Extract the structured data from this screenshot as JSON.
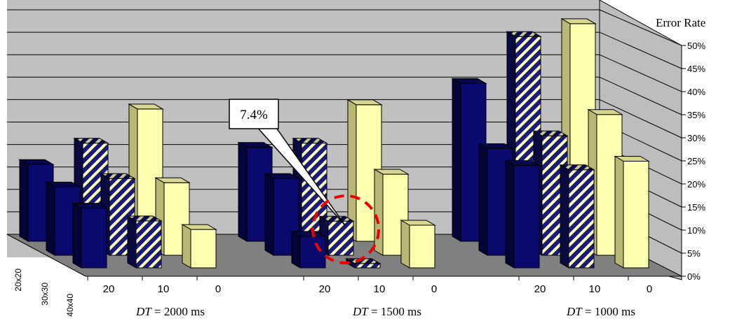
{
  "chart_data": {
    "type": "bar",
    "axis_title": "Error Rate",
    "y_ticks": [
      "0%",
      "5%",
      "10%",
      "15%",
      "20%",
      "25%",
      "30%",
      "35%",
      "40%",
      "45%",
      "50%"
    ],
    "ylim": [
      0,
      50
    ],
    "grid": true,
    "groups": [
      {
        "label_var": "DT",
        "label_rest": " = 2000 ms"
      },
      {
        "label_var": "DT",
        "label_rest": " = 1500 ms"
      },
      {
        "label_var": "DT",
        "label_rest": " = 1000 ms"
      }
    ],
    "categories": [
      "20",
      "10",
      "0"
    ],
    "depth_categories": [
      "20x20",
      "30x30",
      "40x40"
    ],
    "values": [
      [
        [
          18,
          23,
          31
        ],
        [
          16,
          18,
          17
        ],
        [
          14,
          11,
          9
        ]
      ],
      [
        [
          22,
          23,
          32
        ],
        [
          18,
          8,
          19
        ],
        [
          7.4,
          1,
          10
        ]
      ],
      [
        [
          37,
          48,
          51
        ],
        [
          25,
          28,
          33
        ],
        [
          24,
          23,
          25
        ]
      ]
    ],
    "colors": {
      "20x20": "#0a0a6e",
      "30x30": "#1a1a78",
      "40x40": "#ffffa8",
      "floor": "#808080",
      "wall": "#c0c0c0"
    },
    "annotation": {
      "text": "7.4%"
    }
  }
}
